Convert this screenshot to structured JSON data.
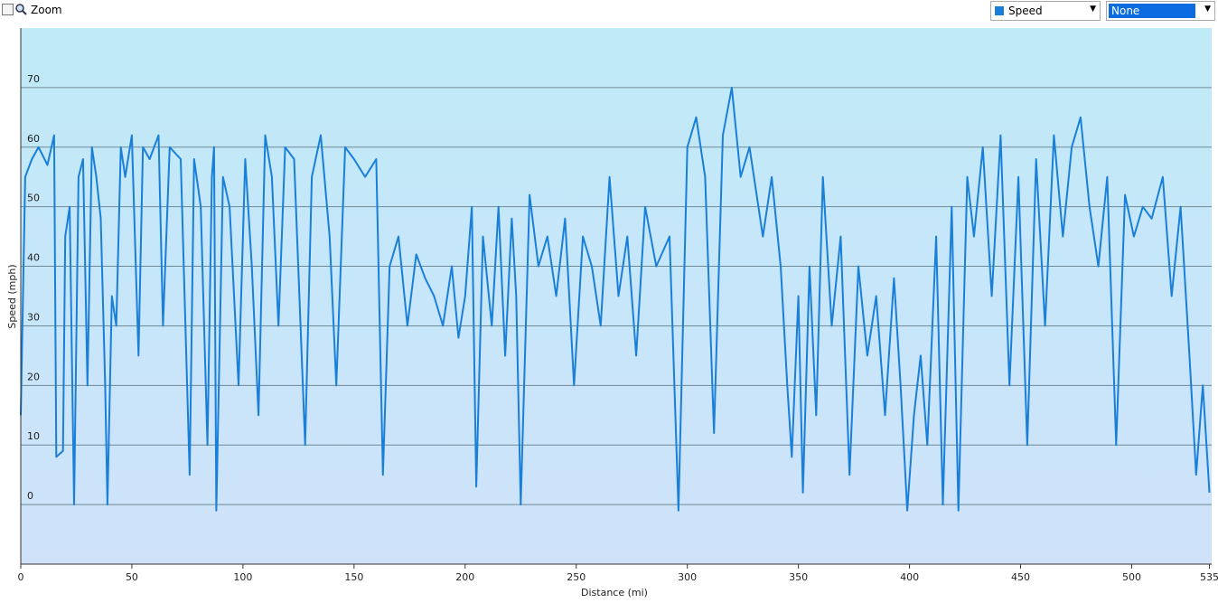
{
  "toolbar": {
    "zoom_label": "Zoom",
    "secondary_select": "None"
  },
  "chart_data": {
    "type": "line",
    "ylabel": "Speed (mph)",
    "xlabel": "Distance  (mi)",
    "x": [
      0,
      2,
      5,
      8,
      12,
      15,
      16,
      19,
      20,
      22,
      24,
      26,
      28,
      30,
      32,
      34,
      36,
      38,
      39,
      41,
      43,
      45,
      47,
      50,
      53,
      55,
      58,
      62,
      64,
      67,
      72,
      76,
      78,
      81,
      84,
      86,
      87,
      88,
      91,
      94,
      98,
      101,
      104,
      107,
      110,
      113,
      116,
      119,
      123,
      128,
      131,
      135,
      139,
      142,
      146,
      150,
      155,
      160,
      163,
      166,
      170,
      174,
      178,
      182,
      186,
      190,
      194,
      197,
      200,
      203,
      205,
      208,
      212,
      215,
      218,
      221,
      223,
      225,
      229,
      233,
      237,
      241,
      245,
      249,
      253,
      257,
      261,
      265,
      269,
      273,
      277,
      281,
      286,
      292,
      296,
      300,
      304,
      308,
      312,
      316,
      320,
      324,
      328,
      334,
      338,
      342,
      345,
      347,
      350,
      352,
      355,
      358,
      361,
      365,
      369,
      373,
      377,
      381,
      385,
      389,
      393,
      396,
      399,
      402,
      405,
      408,
      412,
      415,
      419,
      422,
      426,
      429,
      433,
      437,
      441,
      445,
      449,
      453,
      457,
      461,
      465,
      469,
      473,
      477,
      481,
      485,
      489,
      493,
      497,
      501,
      505,
      509,
      514,
      518,
      522,
      526,
      529,
      532,
      535
    ],
    "series": [
      {
        "name": "Speed",
        "color": "#1a7fd9",
        "values": [
          15,
          55,
          58,
          60,
          57,
          62,
          8,
          9,
          45,
          50,
          0,
          55,
          58,
          20,
          60,
          55,
          48,
          20,
          0,
          35,
          30,
          60,
          55,
          62,
          25,
          60,
          58,
          62,
          30,
          60,
          58,
          5,
          58,
          50,
          10,
          55,
          60,
          -1,
          55,
          50,
          20,
          58,
          40,
          15,
          62,
          55,
          30,
          60,
          58,
          10,
          55,
          62,
          45,
          20,
          60,
          58,
          55,
          58,
          5,
          40,
          45,
          30,
          42,
          38,
          35,
          30,
          40,
          28,
          35,
          50,
          3,
          45,
          30,
          50,
          25,
          48,
          35,
          0,
          52,
          40,
          45,
          35,
          48,
          20,
          45,
          40,
          30,
          55,
          35,
          45,
          25,
          50,
          40,
          45,
          -1,
          60,
          65,
          55,
          12,
          62,
          70,
          55,
          60,
          45,
          55,
          40,
          20,
          8,
          35,
          2,
          40,
          15,
          55,
          30,
          45,
          5,
          40,
          25,
          35,
          15,
          38,
          20,
          -1,
          15,
          25,
          10,
          45,
          0,
          50,
          -1,
          55,
          45,
          60,
          35,
          62,
          20,
          55,
          10,
          58,
          30,
          62,
          45,
          60,
          65,
          50,
          40,
          55,
          10,
          52,
          45,
          50,
          48,
          55,
          35,
          50,
          25,
          5,
          20,
          2
        ]
      }
    ],
    "xlim": [
      0,
      536
    ],
    "ylim": [
      -10,
      80
    ],
    "xticks": [
      0,
      50,
      100,
      150,
      200,
      250,
      300,
      350,
      400,
      450,
      500,
      535
    ],
    "yticks": [
      0,
      10,
      20,
      30,
      40,
      50,
      60,
      70
    ],
    "grid": true
  }
}
